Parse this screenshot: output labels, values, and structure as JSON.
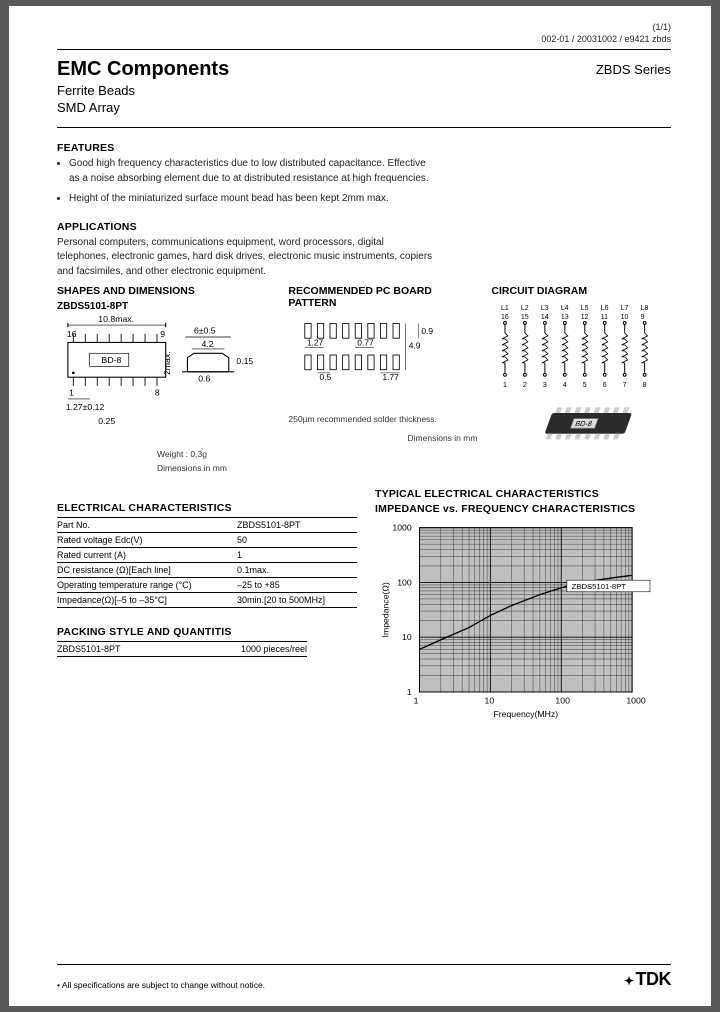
{
  "topcode": {
    "page": "(1/1)",
    "code": "002-01 / 20031002 / e9421  zbds"
  },
  "header": {
    "title": "EMC Components",
    "sub1": "Ferrite Beads",
    "sub2": "SMD Array",
    "series": "ZBDS Series"
  },
  "features": {
    "heading": "FEATURES",
    "items": [
      "Good high frequency characteristics due to low distributed capacitance. Effective as a noise absorbing element due to at distributed resistance at high frequencies.",
      "Height of the miniaturized surface mount bead has been kept 2mm max."
    ]
  },
  "applications": {
    "heading": "APPLICATIONS",
    "text": "Personal computers, communications equipment, word processors, digital telephones, electronic games, hard disk drives, electronic music instruments, copiers and facsimiles, and other electronic equipment."
  },
  "diagrams": {
    "shapes": {
      "heading": "SHAPES AND DIMENSIONS",
      "part": "ZBDS5101-8PT",
      "dims": {
        "len": "10.8max.",
        "pin_hi": "16",
        "pin_hi_r": "9",
        "mark": "BD-8",
        "pin_lo": "1",
        "pin_lo_r": "8",
        "pitch": "1.27±0.12",
        "side_h": "2max.",
        "foot": "0.6",
        "top_w": "6±0.5",
        "shoulder": "4.2",
        "thick": "0.15",
        "lead": "0.25"
      },
      "weight": "Weight : 0.3g",
      "dims_unit": "Dimensions in mm"
    },
    "pcb": {
      "heading": "RECOMMENDED PC BOARD PATTERN",
      "dims": {
        "p1": "1.27",
        "p2": "0.77",
        "h1": "4.9",
        "h2": "0.9",
        "w1": "0.5",
        "w2": "1.77"
      },
      "note1": "250µm recommended solder thickness.",
      "note2": "Dimensions in mm"
    },
    "circuit": {
      "heading": "CIRCUIT DIAGRAM",
      "labels_top": [
        "L1",
        "L2",
        "L3",
        "L4",
        "L5",
        "L6",
        "L7",
        "L8"
      ],
      "pins_top": [
        "16",
        "15",
        "14",
        "13",
        "12",
        "11",
        "10",
        "9"
      ],
      "pins_bot": [
        "1",
        "2",
        "3",
        "4",
        "5",
        "6",
        "7",
        "8"
      ]
    },
    "chip_label": "BD-8"
  },
  "electrical": {
    "heading": "ELECTRICAL CHARACTERISTICS",
    "rows": [
      {
        "k": "Part No.",
        "v": "ZBDS5101-8PT"
      },
      {
        "k": "Rated voltage Edc(V)",
        "v": "50"
      },
      {
        "k": "Rated current (A)",
        "v": "1"
      },
      {
        "k": "DC resistance (Ω)[Each line]",
        "v": "0.1max."
      },
      {
        "k": "Operating temperature range (°C)",
        "v": "–25 to +85"
      },
      {
        "k": "Impedance(Ω)[–5 to –35°C]",
        "v": "30min.[20 to 500MHz]"
      }
    ]
  },
  "packing": {
    "heading": "PACKING STYLE AND QUANTITIS",
    "part": "ZBDS5101-8PT",
    "qty": "1000 pieces/reel"
  },
  "chart": {
    "heading1": "TYPICAL ELECTRICAL CHARACTERISTICS",
    "heading2": "IMPEDANCE vs. FREQUENCY CHARACTERISTICS",
    "ylabel": "Impedance(Ω)",
    "xlabel": "Frequency(MHz)",
    "xticks": [
      "1",
      "10",
      "100",
      "1000"
    ],
    "yticks": [
      "1",
      "10",
      "100",
      "1000"
    ],
    "curve_label": "ZBDS5101-8PT",
    "curve": [
      [
        1,
        6
      ],
      [
        2,
        9
      ],
      [
        5,
        15
      ],
      [
        10,
        25
      ],
      [
        20,
        38
      ],
      [
        50,
        60
      ],
      [
        100,
        80
      ],
      [
        200,
        100
      ],
      [
        500,
        120
      ],
      [
        1000,
        135
      ]
    ],
    "bg": "#bfbfbf",
    "line": "#000000",
    "grid": "#000000"
  },
  "footer": {
    "disclaimer": "• All specifications are subject to change without notice.",
    "logo": "TDK"
  }
}
